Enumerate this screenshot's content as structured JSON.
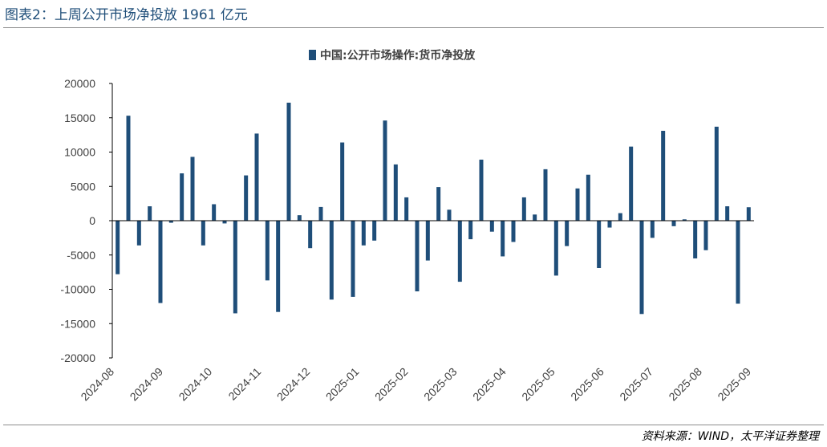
{
  "figure": {
    "title": "图表2：上周公开市场净投放 1961 亿元",
    "source": "资料来源：WIND，太平洋证券整理"
  },
  "colors": {
    "bar": "#1f4e79",
    "axis": "#000000",
    "text": "#404040"
  },
  "chart_data": {
    "type": "bar",
    "title": "",
    "legend": [
      "中国:公开市场操作:货币净投放"
    ],
    "xlabel": "",
    "ylabel": "",
    "ylim": [
      -20000,
      20000
    ],
    "yticks": [
      20000,
      15000,
      10000,
      5000,
      0,
      -5000,
      -10000,
      -15000,
      -20000
    ],
    "xtick_labels": [
      "2024-08",
      "2024-09",
      "2024-10",
      "2024-11",
      "2024-12",
      "2025-01",
      "2025-02",
      "2025-03",
      "2025-04",
      "2025-05",
      "2025-06",
      "2025-07",
      "2025-08",
      "2025-09"
    ],
    "series": [
      {
        "name": "中国:公开市场操作:货币净投放",
        "values": [
          -7800,
          15300,
          -3600,
          2100,
          -12000,
          -300,
          6900,
          9300,
          -3600,
          2400,
          -400,
          -13500,
          6600,
          12700,
          -8700,
          -13300,
          17200,
          800,
          -4000,
          2000,
          -11500,
          11400,
          -11100,
          -3600,
          -2900,
          14600,
          8200,
          3400,
          -10300,
          -5800,
          4900,
          1600,
          -8900,
          -2700,
          8900,
          -1600,
          -5200,
          -3100,
          3400,
          900,
          7500,
          -8000,
          -3700,
          4700,
          6700,
          -6900,
          -1000,
          1100,
          10800,
          -13600,
          -2500,
          13100,
          -800,
          200,
          -5500,
          -4300,
          13700,
          2100,
          -12100,
          1961
        ]
      }
    ]
  }
}
